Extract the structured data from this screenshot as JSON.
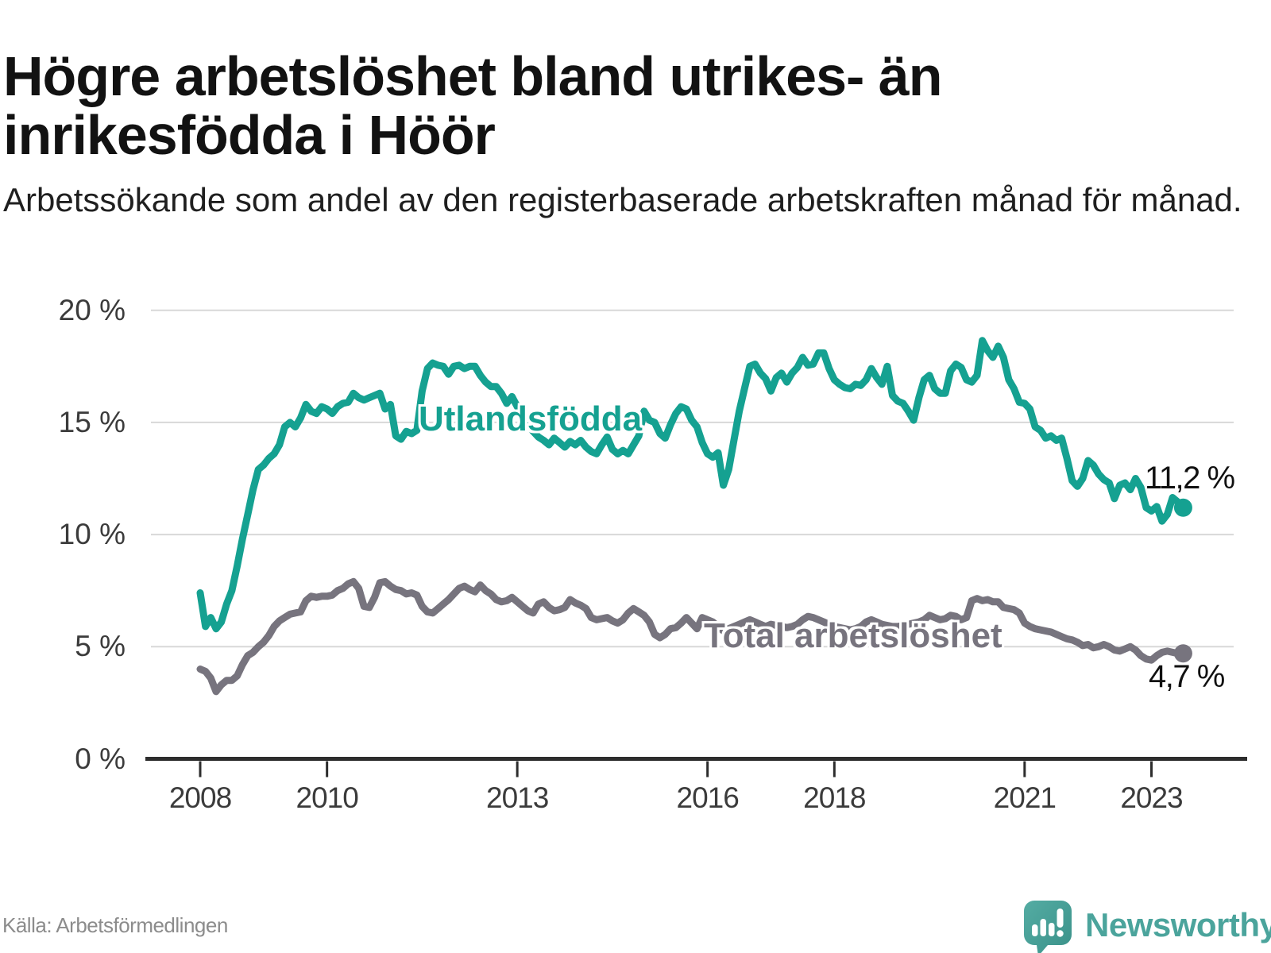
{
  "header": {
    "title": "Högre arbetslöshet bland utrikes- än inrikesfödda i Höör",
    "subtitle": "Arbetssökande som andel av den registerbaserade arbetskraften månad för månad."
  },
  "footer": {
    "source": "Källa: Arbetsförmedlingen",
    "brand": "Newsworthy",
    "logo_icon": "newsworthy-speech-bubble-bar-chart-icon"
  },
  "chart_data": {
    "type": "line",
    "title": "Högre arbetslöshet bland utrikes- än inrikesfödda i Höör",
    "xlabel": "",
    "ylabel": "",
    "grid": "horizontal",
    "ylim": [
      0,
      21
    ],
    "x_start": "2008-01",
    "x_end": "2023-07",
    "points_frequency": "monthly",
    "start_year": 2008,
    "y_ticks": [
      {
        "value": 20,
        "label": "20 %"
      },
      {
        "value": 15,
        "label": "15 %"
      },
      {
        "value": 10,
        "label": "10 %"
      },
      {
        "value": 5,
        "label": "5 %"
      },
      {
        "value": 0,
        "label": "0 %"
      }
    ],
    "x_ticks": [
      {
        "year": 2008,
        "label": "2008"
      },
      {
        "year": 2010,
        "label": "2010"
      },
      {
        "year": 2013,
        "label": "2013"
      },
      {
        "year": 2016,
        "label": "2016"
      },
      {
        "year": 2018,
        "label": "2018"
      },
      {
        "year": 2021,
        "label": "2021"
      },
      {
        "year": 2023,
        "label": "2023"
      }
    ],
    "colors": {
      "utlandsfodda": "#15a191",
      "total": "#77747e",
      "grid": "#d8d8d8",
      "axis": "#2d2d2d"
    },
    "series": [
      {
        "name": "Utlandsfödda",
        "color": "#15a191",
        "end_label": "11,2 %",
        "end_value": 11.2,
        "values": [
          7.4,
          5.9,
          6.3,
          5.8,
          6.1,
          6.9,
          7.5,
          8.6,
          9.8,
          10.9,
          12.0,
          12.9,
          13.1,
          13.4,
          13.6,
          14.0,
          14.8,
          15.0,
          14.8,
          15.2,
          15.8,
          15.5,
          15.4,
          15.7,
          15.6,
          15.4,
          15.7,
          15.85,
          15.9,
          16.3,
          16.1,
          16.0,
          16.1,
          16.2,
          16.3,
          15.6,
          15.8,
          14.4,
          14.25,
          14.6,
          14.5,
          14.65,
          16.4,
          17.4,
          17.65,
          17.55,
          17.5,
          17.15,
          17.5,
          17.55,
          17.4,
          17.5,
          17.5,
          17.1,
          16.8,
          16.6,
          16.6,
          16.3,
          15.85,
          16.15,
          15.7,
          15.3,
          14.9,
          14.6,
          14.35,
          14.2,
          14.0,
          14.3,
          14.1,
          13.9,
          14.15,
          14.0,
          14.2,
          13.9,
          13.7,
          13.6,
          14.0,
          14.35,
          13.8,
          13.6,
          13.75,
          13.6,
          14.0,
          14.4,
          15.5,
          15.1,
          15.0,
          14.5,
          14.3,
          14.9,
          15.4,
          15.7,
          15.6,
          15.1,
          14.8,
          14.1,
          13.6,
          13.45,
          13.65,
          12.2,
          12.9,
          14.2,
          15.5,
          16.5,
          17.5,
          17.6,
          17.2,
          16.95,
          16.4,
          17.0,
          17.2,
          16.8,
          17.2,
          17.45,
          17.9,
          17.55,
          17.6,
          18.1,
          18.1,
          17.4,
          16.9,
          16.7,
          16.55,
          16.5,
          16.7,
          16.65,
          16.9,
          17.4,
          17.0,
          16.7,
          17.5,
          16.2,
          15.95,
          15.85,
          15.5,
          15.1,
          16.1,
          16.9,
          17.1,
          16.5,
          16.3,
          16.3,
          17.3,
          17.6,
          17.45,
          16.9,
          16.8,
          17.1,
          18.65,
          18.2,
          17.9,
          18.4,
          17.9,
          16.9,
          16.5,
          15.9,
          15.85,
          15.6,
          14.8,
          14.65,
          14.3,
          14.4,
          14.2,
          14.3,
          13.4,
          12.4,
          12.15,
          12.5,
          13.3,
          13.1,
          12.7,
          12.45,
          12.3,
          11.6,
          12.2,
          12.3,
          12.0,
          12.5,
          12.1,
          11.2,
          11.05,
          11.25,
          10.6,
          10.9,
          11.65,
          11.45,
          11.2
        ]
      },
      {
        "name": "Total arbetslöshet",
        "color": "#77747e",
        "end_label": "4,7 %",
        "end_value": 4.7,
        "values": [
          4.0,
          3.9,
          3.6,
          3.0,
          3.3,
          3.5,
          3.5,
          3.7,
          4.2,
          4.6,
          4.75,
          5.0,
          5.2,
          5.5,
          5.9,
          6.15,
          6.3,
          6.45,
          6.5,
          6.55,
          7.05,
          7.25,
          7.2,
          7.25,
          7.25,
          7.3,
          7.5,
          7.6,
          7.8,
          7.9,
          7.6,
          6.8,
          6.75,
          7.2,
          7.85,
          7.9,
          7.7,
          7.55,
          7.5,
          7.35,
          7.4,
          7.3,
          6.8,
          6.55,
          6.5,
          6.7,
          6.9,
          7.1,
          7.35,
          7.6,
          7.7,
          7.55,
          7.45,
          7.75,
          7.5,
          7.35,
          7.1,
          7.0,
          7.05,
          7.2,
          7.0,
          6.8,
          6.6,
          6.5,
          6.9,
          7.0,
          6.75,
          6.6,
          6.65,
          6.75,
          7.1,
          6.95,
          6.85,
          6.7,
          6.3,
          6.2,
          6.25,
          6.3,
          6.15,
          6.05,
          6.2,
          6.5,
          6.7,
          6.55,
          6.4,
          6.1,
          5.55,
          5.4,
          5.55,
          5.8,
          5.85,
          6.05,
          6.3,
          6.05,
          5.8,
          6.3,
          6.2,
          6.1,
          5.9,
          5.7,
          5.8,
          5.9,
          6.0,
          6.1,
          6.2,
          6.1,
          6.0,
          5.9,
          6.0,
          5.95,
          5.9,
          5.85,
          5.9,
          6.0,
          6.2,
          6.35,
          6.3,
          6.2,
          6.1,
          6.0,
          5.9,
          5.85,
          5.8,
          5.75,
          5.8,
          5.9,
          6.1,
          6.2,
          6.1,
          6.0,
          5.95,
          5.9,
          5.9,
          5.95,
          6.0,
          6.05,
          6.1,
          6.2,
          6.4,
          6.3,
          6.2,
          6.25,
          6.4,
          6.35,
          6.2,
          6.3,
          7.05,
          7.15,
          7.05,
          7.1,
          7.0,
          7.0,
          6.75,
          6.7,
          6.65,
          6.5,
          6.05,
          5.9,
          5.8,
          5.75,
          5.7,
          5.65,
          5.55,
          5.45,
          5.35,
          5.3,
          5.2,
          5.05,
          5.1,
          4.95,
          5.0,
          5.1,
          5.0,
          4.85,
          4.8,
          4.9,
          5.0,
          4.85,
          4.6,
          4.45,
          4.4,
          4.6,
          4.75,
          4.8,
          4.75,
          4.7,
          4.7
        ]
      }
    ]
  }
}
